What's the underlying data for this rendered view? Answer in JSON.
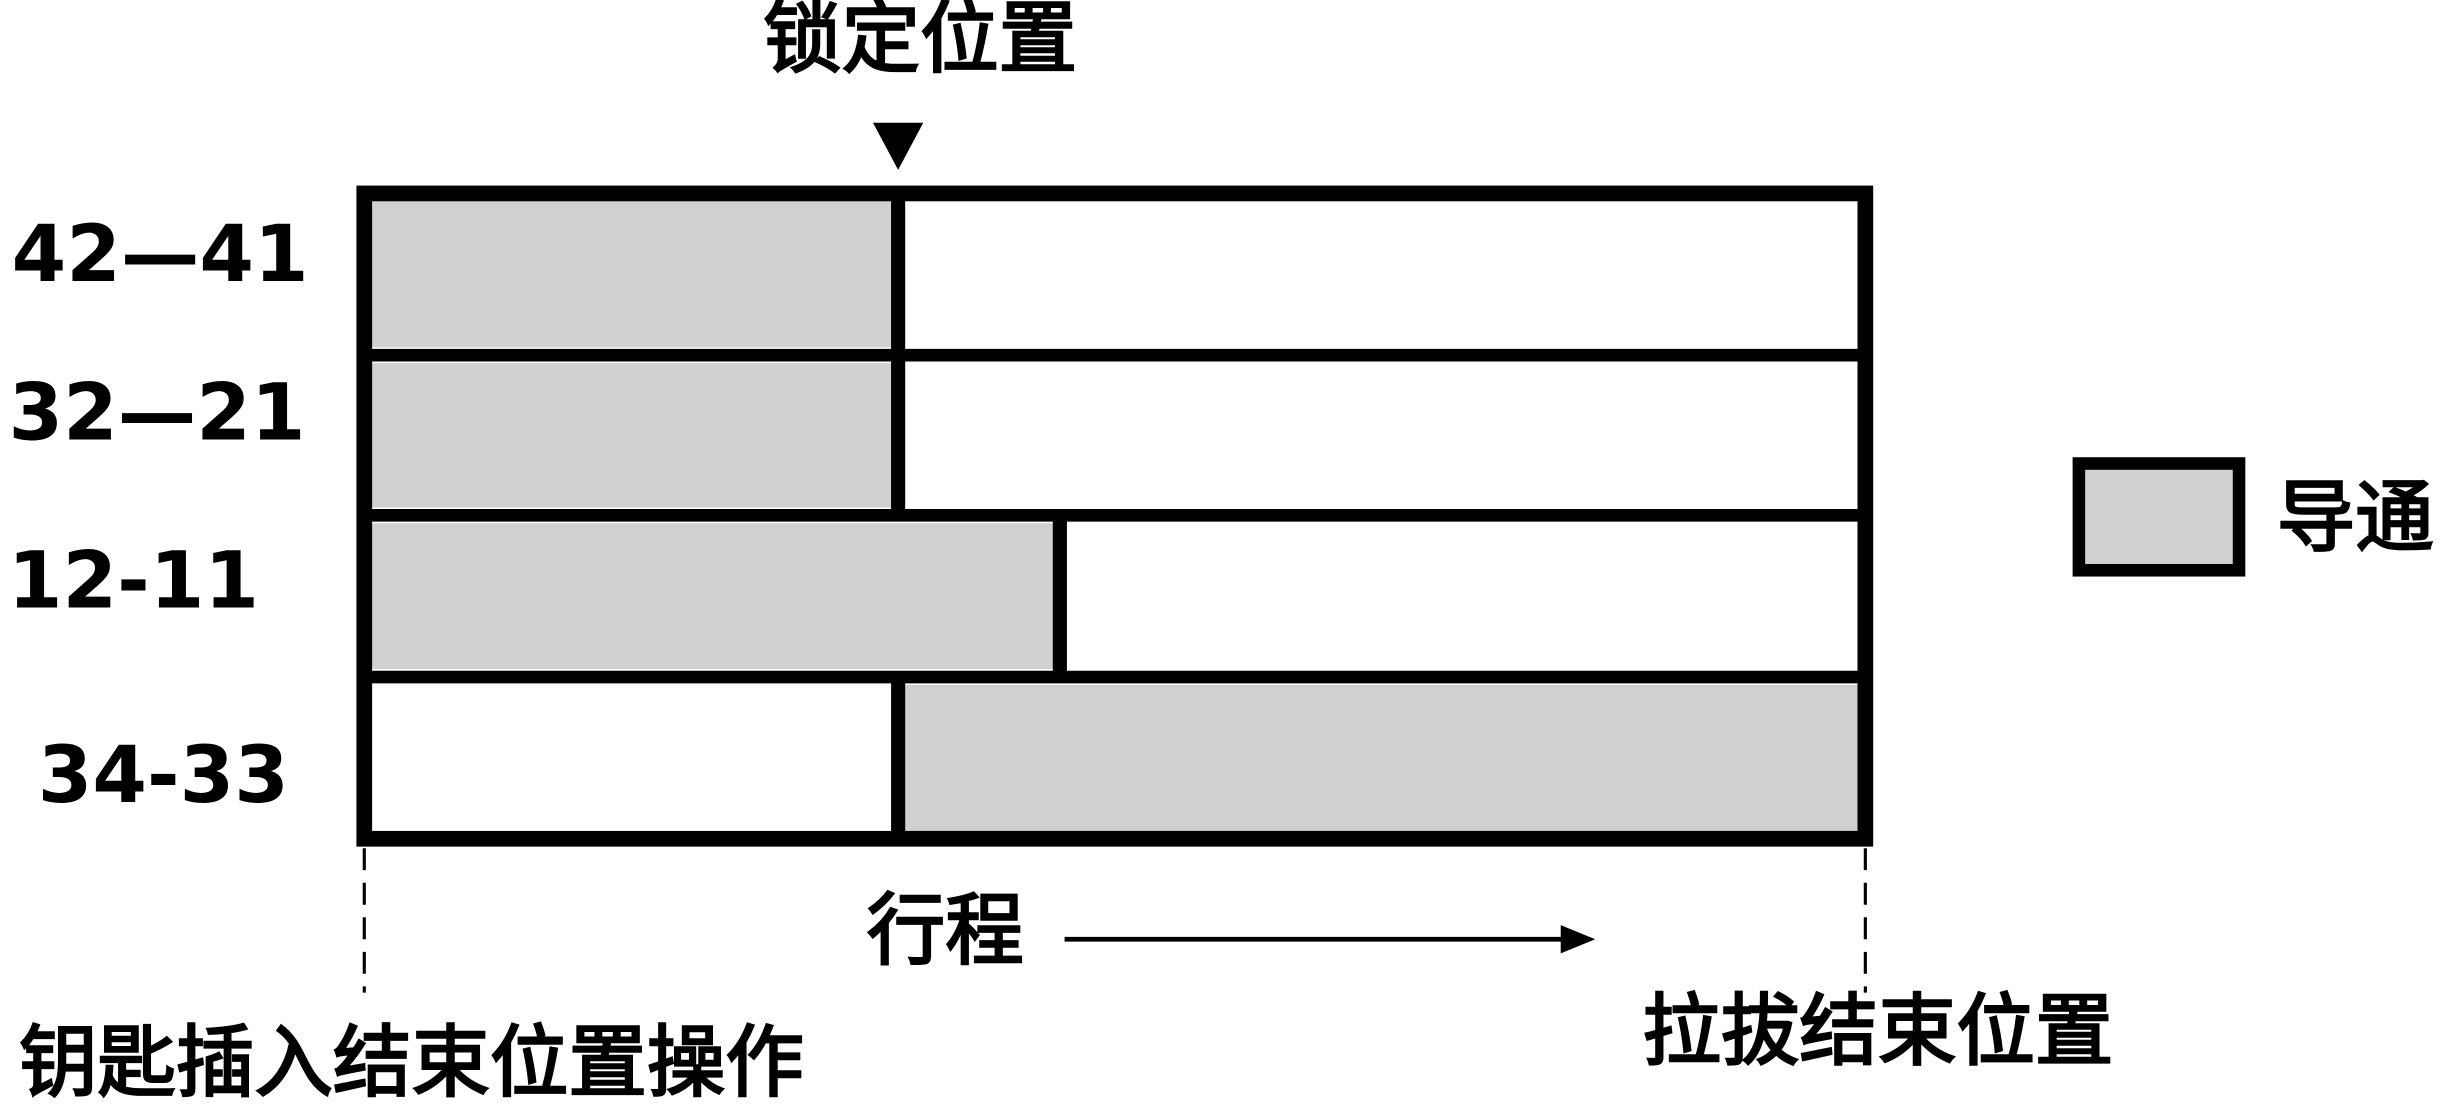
{
  "title": "锁定位置",
  "rows": [
    {
      "label": "42—41"
    },
    {
      "label": "32—21"
    },
    {
      "label": "12-11"
    },
    {
      "label": "34-33"
    }
  ],
  "legend": {
    "label": "导通"
  },
  "axis_label": "行程",
  "start_label": "钥匙插入结束位置操作",
  "end_label": "拉拔结束位置"
}
